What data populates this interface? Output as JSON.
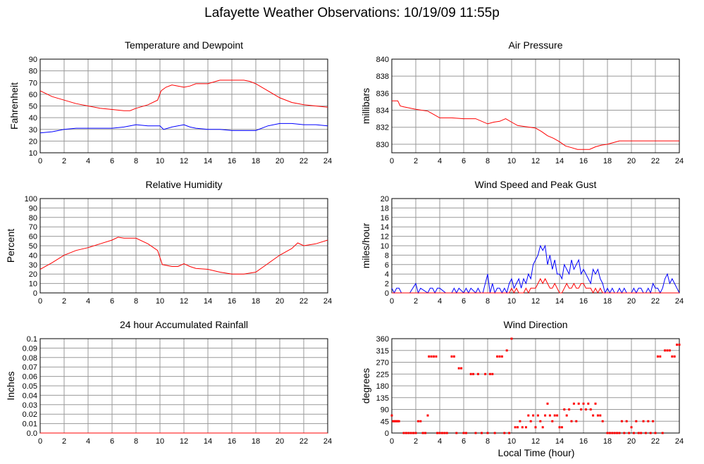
{
  "title": "Lafayette Weather Observations: 10/19/09 11:55p",
  "x_axis_label": "Local Time (hour)",
  "colors": {
    "red": "#ff0000",
    "blue": "#0000ff",
    "grid": "#999999"
  },
  "chart_data": [
    {
      "id": "temp",
      "type": "line",
      "title": "Temperature and Dewpoint",
      "ylabel": "Fahrenheit",
      "xlim": [
        0,
        24
      ],
      "ylim": [
        10,
        90
      ],
      "xticks": [
        0,
        2,
        4,
        6,
        8,
        10,
        12,
        14,
        16,
        18,
        20,
        22,
        24
      ],
      "yticks": [
        10,
        20,
        30,
        40,
        50,
        60,
        70,
        80,
        90
      ],
      "yticklabels": [
        "10",
        "20",
        "30",
        "40",
        "50",
        "60",
        "70",
        "80",
        "90"
      ],
      "series": [
        {
          "color": "#ff0000",
          "x": [
            0,
            1,
            2,
            3,
            4,
            5,
            6,
            7,
            7.5,
            8,
            9,
            9.8,
            10.1,
            10.5,
            11,
            11.5,
            12,
            12.5,
            13,
            14,
            15,
            16,
            17,
            17.5,
            18,
            19,
            20,
            21,
            22,
            23,
            24
          ],
          "y": [
            63,
            58,
            55,
            52,
            50,
            48,
            47,
            46,
            46,
            48,
            51,
            55,
            63,
            66,
            68,
            67,
            66,
            67,
            69,
            69,
            72,
            72,
            72,
            71,
            69,
            63,
            57,
            53,
            51,
            50,
            49
          ]
        },
        {
          "color": "#0000ff",
          "x": [
            0,
            1,
            2,
            3,
            4,
            5,
            6,
            7,
            7.5,
            8,
            9,
            10,
            10.3,
            11,
            12,
            12.5,
            13,
            14,
            15,
            16,
            17,
            18,
            19,
            20,
            21,
            22,
            23,
            24
          ],
          "y": [
            27,
            28,
            30,
            31,
            31,
            31,
            31,
            32,
            33,
            34,
            33,
            33,
            30,
            32,
            34,
            32,
            31,
            30,
            30,
            29,
            29,
            29,
            33,
            35,
            35,
            34,
            34,
            33
          ]
        }
      ]
    },
    {
      "id": "pressure",
      "type": "line",
      "title": "Air Pressure",
      "ylabel": "millibars",
      "xlim": [
        0,
        24
      ],
      "ylim": [
        829,
        840
      ],
      "xticks": [
        0,
        2,
        4,
        6,
        8,
        10,
        12,
        14,
        16,
        18,
        20,
        22,
        24
      ],
      "yticks": [
        830,
        832,
        834,
        836,
        838,
        840
      ],
      "yticklabels": [
        "830",
        "832",
        "834",
        "836",
        "838",
        "840"
      ],
      "series": [
        {
          "color": "#ff0000",
          "x": [
            0,
            0.5,
            0.7,
            1,
            2,
            3,
            3.5,
            4,
            5,
            6,
            7,
            8,
            8.5,
            9,
            9.5,
            10,
            10.5,
            11,
            12,
            12.5,
            13,
            13.5,
            14,
            14.5,
            15,
            15.5,
            16,
            16.5,
            17,
            17.5,
            18,
            18.5,
            19,
            20,
            21,
            22,
            23,
            24
          ],
          "y": [
            835.1,
            835.1,
            834.5,
            834.4,
            834.1,
            833.9,
            833.5,
            833.1,
            833.1,
            833.0,
            833.0,
            832.4,
            832.6,
            832.7,
            833.0,
            832.6,
            832.2,
            832.1,
            831.9,
            831.5,
            831.0,
            830.7,
            830.3,
            829.8,
            829.6,
            829.4,
            829.4,
            829.4,
            829.7,
            829.9,
            830.0,
            830.2,
            830.4,
            830.4,
            830.4,
            830.4,
            830.4,
            830.4
          ]
        }
      ]
    },
    {
      "id": "humidity",
      "type": "line",
      "title": "Relative Humidity",
      "ylabel": "Percent",
      "xlim": [
        0,
        24
      ],
      "ylim": [
        0,
        100
      ],
      "xticks": [
        0,
        2,
        4,
        6,
        8,
        10,
        12,
        14,
        16,
        18,
        20,
        22,
        24
      ],
      "yticks": [
        0,
        10,
        20,
        30,
        40,
        50,
        60,
        70,
        80,
        90,
        100
      ],
      "yticklabels": [
        "0",
        "10",
        "20",
        "30",
        "40",
        "50",
        "60",
        "70",
        "80",
        "90",
        "100"
      ],
      "series": [
        {
          "color": "#ff0000",
          "x": [
            0,
            1,
            2,
            3,
            4,
            5,
            6,
            6.5,
            7,
            7.5,
            8,
            9,
            9.8,
            10.2,
            11,
            11.5,
            12,
            12.5,
            13,
            14,
            15,
            16,
            17,
            18,
            19,
            20,
            21,
            21.5,
            22,
            23,
            24
          ],
          "y": [
            25,
            32,
            40,
            45,
            48,
            52,
            56,
            59,
            58,
            58,
            58,
            52,
            45,
            30,
            28,
            28,
            31,
            28,
            26,
            25,
            22,
            20,
            20,
            22,
            31,
            40,
            47,
            53,
            50,
            52,
            56
          ]
        }
      ]
    },
    {
      "id": "wind",
      "type": "line",
      "title": "Wind Speed and Peak Gust",
      "ylabel": "miles/hour",
      "xlim": [
        0,
        24
      ],
      "ylim": [
        0,
        20
      ],
      "xticks": [
        0,
        2,
        4,
        6,
        8,
        10,
        12,
        14,
        16,
        18,
        20,
        22,
        24
      ],
      "yticks": [
        0,
        2,
        4,
        6,
        8,
        10,
        12,
        14,
        16,
        18,
        20
      ],
      "yticklabels": [
        "0",
        "2",
        "4",
        "6",
        "8",
        "10",
        "12",
        "14",
        "16",
        "18",
        "20"
      ],
      "series": [
        {
          "color": "#0000ff",
          "x": [
            0,
            0.2,
            0.4,
            0.6,
            0.8,
            1,
            1.5,
            2,
            2.2,
            2.4,
            3,
            3.2,
            3.4,
            3.6,
            3.8,
            4,
            4.5,
            5,
            5.2,
            5.4,
            5.6,
            6,
            6.2,
            6.4,
            6.6,
            7,
            7.2,
            7.4,
            7.6,
            8,
            8.2,
            8.4,
            8.6,
            8.8,
            9,
            9.2,
            9.4,
            9.6,
            9.8,
            10,
            10.2,
            10.4,
            10.6,
            10.8,
            11,
            11.2,
            11.4,
            11.6,
            11.8,
            12,
            12.2,
            12.4,
            12.6,
            12.8,
            13,
            13.2,
            13.4,
            13.6,
            13.8,
            14,
            14.2,
            14.4,
            14.6,
            14.8,
            15,
            15.2,
            15.4,
            15.6,
            15.8,
            16,
            16.2,
            16.4,
            16.6,
            16.8,
            17,
            17.2,
            17.4,
            17.6,
            17.8,
            18,
            18.2,
            18.4,
            18.6,
            18.8,
            19,
            19.2,
            19.4,
            19.6,
            19.8,
            20,
            20.2,
            20.4,
            20.6,
            20.8,
            21,
            21.2,
            21.4,
            21.6,
            21.8,
            22,
            22.2,
            22.4,
            22.6,
            22.8,
            23,
            23.2,
            23.4,
            23.6,
            23.8,
            24
          ],
          "y": [
            1,
            0,
            1,
            1,
            0,
            0,
            0,
            2,
            0,
            1,
            0,
            1,
            1,
            0,
            1,
            1,
            0,
            0,
            1,
            0,
            1,
            0,
            1,
            0,
            1,
            0,
            1,
            0,
            0,
            4,
            0,
            2,
            0,
            1,
            1,
            0,
            1,
            0,
            2,
            3,
            1,
            2,
            3,
            1,
            3,
            2,
            4,
            3,
            6,
            7,
            8,
            10,
            9,
            10,
            6,
            8,
            5,
            7,
            4,
            4,
            3,
            6,
            5,
            4,
            7,
            5,
            6,
            7,
            4,
            5,
            4,
            3,
            2,
            5,
            4,
            5,
            3,
            2,
            0,
            1,
            0,
            1,
            0,
            0,
            1,
            0,
            1,
            0,
            0,
            0,
            1,
            0,
            1,
            1,
            0,
            0,
            1,
            0,
            2,
            1,
            1,
            0,
            1,
            3,
            4,
            2,
            3,
            2,
            1,
            0
          ]
        },
        {
          "color": "#ff0000",
          "x": [
            0,
            9.8,
            10,
            10.2,
            10.4,
            10.6,
            10.8,
            11,
            11.2,
            11.4,
            11.6,
            11.8,
            12,
            12.2,
            12.4,
            12.6,
            12.8,
            13,
            13.2,
            13.4,
            13.6,
            13.8,
            14,
            14.2,
            14.4,
            14.6,
            14.8,
            15,
            15.2,
            15.4,
            15.6,
            15.8,
            16,
            16.2,
            16.4,
            16.6,
            16.8,
            17,
            17.2,
            17.4,
            17.6,
            24
          ],
          "y": [
            0,
            0,
            1,
            0,
            1,
            0,
            0,
            0,
            1,
            0,
            1,
            1,
            1,
            2,
            3,
            2,
            3,
            2,
            1,
            1,
            2,
            1,
            0,
            0,
            1,
            2,
            1,
            1,
            2,
            1,
            1,
            2,
            2,
            1,
            1,
            1,
            0,
            1,
            0,
            1,
            0,
            0
          ]
        }
      ]
    },
    {
      "id": "rain",
      "type": "line",
      "title": "24 hour Accumulated Rainfall",
      "ylabel": "Inches",
      "xlim": [
        0,
        24
      ],
      "ylim": [
        0,
        0.1
      ],
      "xticks": [
        0,
        2,
        4,
        6,
        8,
        10,
        12,
        14,
        16,
        18,
        20,
        22,
        24
      ],
      "yticks": [
        0,
        0.01,
        0.02,
        0.03,
        0.04,
        0.05,
        0.06,
        0.07,
        0.08,
        0.09,
        0.1
      ],
      "yticklabels": [
        "0.0",
        "0.01",
        "0.02",
        "0.03",
        "0.04",
        "0.05",
        "0.06",
        "0.07",
        "0.08",
        "0.09",
        "0.1"
      ],
      "series": [
        {
          "color": "#ff0000",
          "x": [
            0,
            24
          ],
          "y": [
            0,
            0
          ]
        }
      ]
    },
    {
      "id": "winddir",
      "type": "scatter",
      "title": "Wind Direction",
      "ylabel": "degrees",
      "xlim": [
        0,
        24
      ],
      "ylim": [
        0,
        360
      ],
      "xticks": [
        0,
        2,
        4,
        6,
        8,
        10,
        12,
        14,
        16,
        18,
        20,
        22,
        24
      ],
      "yticks": [
        0,
        45,
        90,
        135,
        180,
        225,
        270,
        315,
        360
      ],
      "yticklabels": [
        "0",
        "45",
        "90",
        "135",
        "180",
        "225",
        "270",
        "315",
        "360"
      ],
      "series": [
        {
          "color": "#ff0000",
          "x": [
            0,
            0.1,
            0.2,
            0.3,
            0.4,
            0.5,
            0.6,
            1,
            1.2,
            1.4,
            1.6,
            1.8,
            2,
            2.2,
            2.4,
            2.6,
            2.8,
            3.0,
            2.6,
            3.1,
            3.3,
            3.5,
            3.7,
            3.8,
            4.0,
            4.2,
            4.4,
            4.6,
            5.0,
            5.2,
            5.4,
            5.6,
            5.8,
            6.0,
            6.2,
            6.6,
            6.8,
            7.0,
            7.2,
            7.5,
            7.8,
            8.0,
            8.2,
            8.4,
            8.6,
            8.8,
            9.0,
            9.2,
            9.4,
            9.6,
            9.8,
            10.0,
            10.3,
            10.5,
            10.7,
            10.9,
            11.2,
            11.4,
            11.6,
            11.8,
            12.0,
            12.2,
            12.4,
            12.6,
            12.8,
            13.0,
            13.2,
            13.4,
            13.6,
            13.8,
            14.0,
            14.2,
            14.4,
            14.6,
            14.8,
            15.0,
            15.2,
            15.4,
            15.6,
            15.8,
            16.0,
            16.2,
            16.4,
            16.6,
            16.8,
            17.0,
            17.2,
            17.4,
            17.6,
            18.0,
            18.2,
            18.4,
            18.6,
            18.8,
            19.0,
            19.2,
            19.4,
            19.6,
            19.8,
            20.0,
            20.2,
            20.4,
            20.6,
            20.8,
            21.0,
            21.2,
            21.4,
            21.6,
            21.8,
            22.0,
            22.2,
            22.4,
            22.6,
            22.8,
            23.0,
            23.2,
            23.4,
            23.6,
            23.8,
            24.0
          ],
          "y": [
            67,
            45,
            45,
            45,
            45,
            45,
            45,
            0,
            0,
            0,
            0,
            0,
            0,
            45,
            45,
            0,
            0,
            67,
            0,
            292,
            292,
            292,
            292,
            0,
            0,
            0,
            0,
            0,
            292,
            292,
            0,
            247,
            247,
            0,
            0,
            225,
            225,
            0,
            225,
            0,
            225,
            0,
            225,
            225,
            0,
            292,
            292,
            292,
            0,
            315,
            0,
            360,
            22,
            22,
            45,
            22,
            22,
            67,
            45,
            67,
            22,
            67,
            45,
            22,
            67,
            112,
            67,
            45,
            67,
            67,
            22,
            22,
            90,
            67,
            90,
            45,
            112,
            45,
            112,
            90,
            112,
            90,
            112,
            90,
            67,
            112,
            67,
            67,
            45,
            0,
            0,
            0,
            0,
            0,
            0,
            45,
            0,
            45,
            0,
            22,
            0,
            45,
            0,
            0,
            45,
            0,
            45,
            0,
            45,
            0,
            292,
            292,
            0,
            315,
            315,
            315,
            292,
            292,
            337,
            337
          ]
        }
      ]
    }
  ]
}
